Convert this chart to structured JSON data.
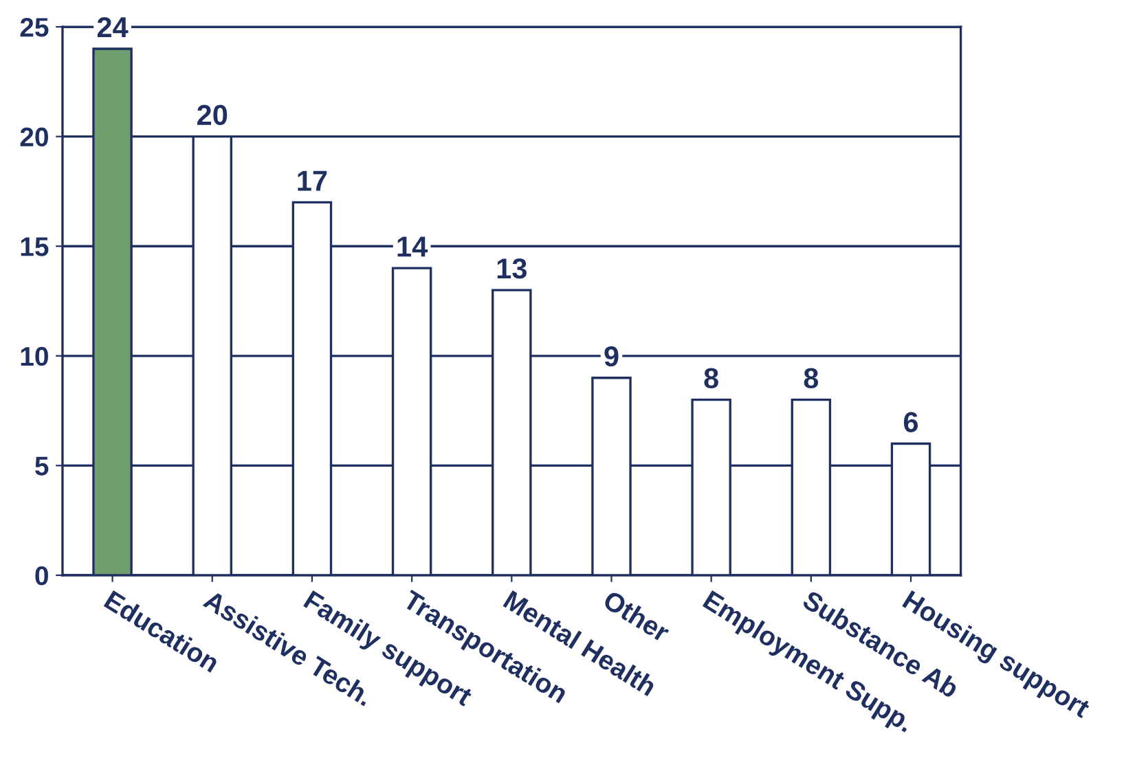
{
  "chart_data": {
    "type": "bar",
    "categories": [
      "Education",
      "Assistive Tech.",
      "Family support",
      "Transportation",
      "Mental Health",
      "Other",
      "Employment Supp.",
      "Substance Ab",
      "Housing support"
    ],
    "values": [
      24,
      20,
      17,
      14,
      13,
      9,
      8,
      8,
      6
    ],
    "colors": [
      "#6f9e6f",
      "#ffffff",
      "#ffffff",
      "#ffffff",
      "#ffffff",
      "#ffffff",
      "#ffffff",
      "#ffffff",
      "#ffffff"
    ],
    "ylim": [
      0,
      25
    ],
    "yticks": [
      0,
      5,
      10,
      15,
      20,
      25
    ],
    "grid": "y",
    "data_labels": true
  }
}
